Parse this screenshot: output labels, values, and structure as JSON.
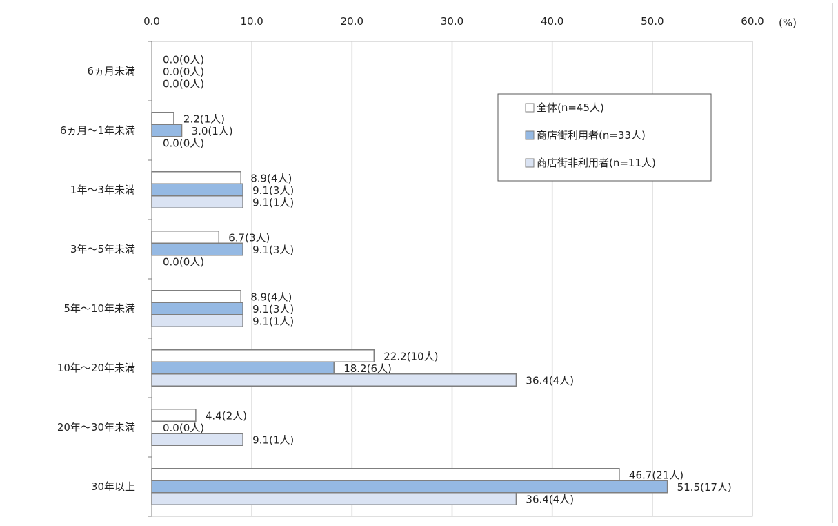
{
  "chart_data": {
    "type": "bar",
    "orientation": "horizontal",
    "unit_label": "(%)",
    "xlim": [
      0,
      60
    ],
    "ticks": [
      "0.0",
      "10.0",
      "20.0",
      "30.0",
      "40.0",
      "50.0",
      "60.0"
    ],
    "grid": true,
    "legend_position": "top-right",
    "categories": [
      "6ヵ月未満",
      "6ヵ月～1年未満",
      "1年～3年未満",
      "3年～5年未満",
      "5年～10年未満",
      "10年～20年未満",
      "20年～30年未満",
      "30年以上"
    ],
    "series": [
      {
        "name": "全体(n=45人)",
        "color": "#ffffff",
        "values": [
          0.0,
          2.2,
          8.9,
          6.7,
          8.9,
          22.2,
          4.4,
          46.7
        ],
        "labels": [
          "0.0(0人)",
          "2.2(1人)",
          "8.9(4人)",
          "6.7(3人)",
          "8.9(4人)",
          "22.2(10人)",
          "4.4(2人)",
          "46.7(21人)"
        ]
      },
      {
        "name": "商店街利用者(n=33人)",
        "color": "#95b9e3",
        "values": [
          0.0,
          3.0,
          9.1,
          9.1,
          9.1,
          18.2,
          0.0,
          51.5
        ],
        "labels": [
          "0.0(0人)",
          "3.0(1人)",
          "9.1(3人)",
          "9.1(3人)",
          "9.1(3人)",
          "18.2(6人)",
          "0.0(0人)",
          "51.5(17人)"
        ]
      },
      {
        "name": "商店街非利用者(n=11人)",
        "color": "#dae3f3",
        "values": [
          0.0,
          0.0,
          9.1,
          0.0,
          9.1,
          36.4,
          9.1,
          36.4
        ],
        "labels": [
          "0.0(0人)",
          "0.0(0人)",
          "9.1(1人)",
          "0.0(0人)",
          "9.1(1人)",
          "36.4(4人)",
          "9.1(1人)",
          "36.4(4人)"
        ]
      }
    ]
  }
}
